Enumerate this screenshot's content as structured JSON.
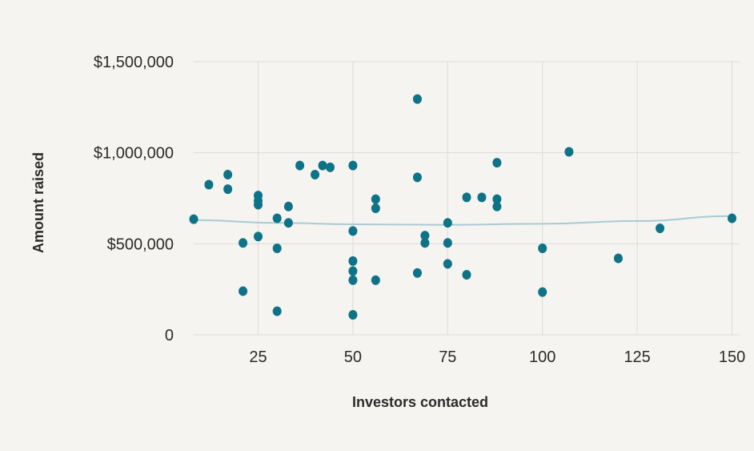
{
  "chart_data": {
    "type": "scatter",
    "xlabel": "Investors contacted",
    "ylabel": "Amount raised",
    "xlim": [
      8,
      152
    ],
    "ylim": [
      0,
      1500000
    ],
    "xticks": [
      25,
      50,
      75,
      100,
      125,
      150
    ],
    "yticks": [
      0,
      500000,
      1000000,
      1500000
    ],
    "ytick_labels": [
      "0",
      "$500,000",
      "$1,000,000",
      "$1,500,000"
    ],
    "grid": true,
    "trendline": true,
    "colors": {
      "points": "#0f7388",
      "trend": "#a9cbd4",
      "grid": "#dddcd7",
      "background": "#f5f4f0"
    },
    "series": [
      {
        "points": [
          [
            8,
            635000
          ],
          [
            12,
            825000
          ],
          [
            17,
            880000
          ],
          [
            17,
            800000
          ],
          [
            21,
            505000
          ],
          [
            21,
            240000
          ],
          [
            25,
            765000
          ],
          [
            25,
            735000
          ],
          [
            25,
            715000
          ],
          [
            25,
            540000
          ],
          [
            30,
            640000
          ],
          [
            30,
            475000
          ],
          [
            30,
            130000
          ],
          [
            33,
            705000
          ],
          [
            33,
            615000
          ],
          [
            36,
            930000
          ],
          [
            40,
            880000
          ],
          [
            42,
            930000
          ],
          [
            44,
            920000
          ],
          [
            50,
            930000
          ],
          [
            50,
            570000
          ],
          [
            50,
            405000
          ],
          [
            50,
            350000
          ],
          [
            50,
            300000
          ],
          [
            50,
            110000
          ],
          [
            56,
            745000
          ],
          [
            56,
            695000
          ],
          [
            56,
            300000
          ],
          [
            67,
            1295000
          ],
          [
            67,
            865000
          ],
          [
            67,
            340000
          ],
          [
            69,
            545000
          ],
          [
            69,
            505000
          ],
          [
            75,
            615000
          ],
          [
            75,
            505000
          ],
          [
            75,
            390000
          ],
          [
            80,
            755000
          ],
          [
            80,
            330000
          ],
          [
            84,
            755000
          ],
          [
            88,
            945000
          ],
          [
            88,
            745000
          ],
          [
            88,
            705000
          ],
          [
            100,
            475000
          ],
          [
            100,
            235000
          ],
          [
            107,
            1005000
          ],
          [
            120,
            420000
          ],
          [
            131,
            585000
          ],
          [
            150,
            640000
          ]
        ]
      }
    ],
    "trend_points": [
      [
        8,
        630000
      ],
      [
        30,
        615000
      ],
      [
        50,
        607000
      ],
      [
        75,
        604000
      ],
      [
        100,
        610000
      ],
      [
        125,
        625000
      ],
      [
        150,
        652000
      ]
    ]
  }
}
